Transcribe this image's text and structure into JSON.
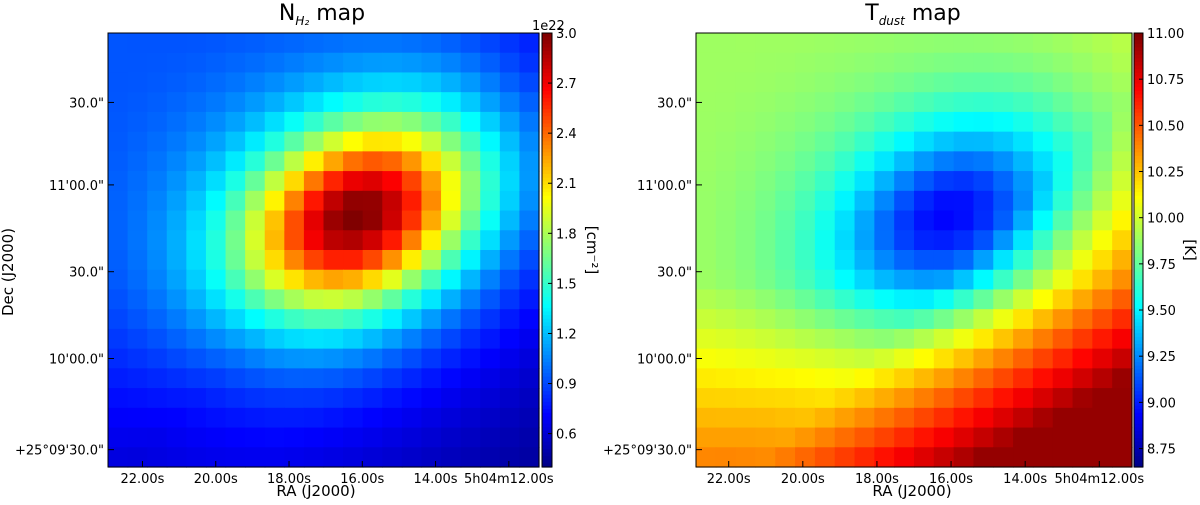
{
  "chart_data": [
    {
      "type": "heatmap",
      "title": "N",
      "title_sub": "H₂",
      "title_suffix": " map",
      "xlabel": "RA (J2000)",
      "ylabel": "Dec (J2000)",
      "x_ticks": [
        "22.00s",
        "20.00s",
        "18.00s",
        "16.00s",
        "14.00s",
        "5h04m12.00s"
      ],
      "y_ticks": [
        "30.0\"",
        "11'00.0\"",
        "30.0\"",
        "10'00.0\"",
        "+25°09'30.0\""
      ],
      "colorbar": {
        "label": "[cm⁻²]",
        "offset_text": "1e22",
        "min": 0.4,
        "max": 3.0,
        "ticks": [
          "3.0",
          "2.7",
          "2.4",
          "2.1",
          "1.8",
          "1.5",
          "1.2",
          "0.9",
          "0.6"
        ],
        "tick_values": [
          3.0,
          2.7,
          2.4,
          2.1,
          1.8,
          1.5,
          1.2,
          0.9,
          0.6
        ],
        "colormap": "jet"
      },
      "grid": {
        "cols": 22,
        "rows": 22
      },
      "model": {
        "description_peak_value": 3.0,
        "peak_col": 12.3,
        "peak_row": 8.8,
        "sigma_major": 4.2,
        "sigma_minor": 2.9,
        "angle_deg": 62,
        "halo_amp": 0.75,
        "halo_sigma_major": 8.5,
        "halo_sigma_minor": 6.0,
        "background": 0.55,
        "gradient_topleft": 0.35
      }
    },
    {
      "type": "heatmap",
      "title": "T",
      "title_sub": "dust",
      "title_suffix": " map",
      "xlabel": "RA (J2000)",
      "ylabel": "",
      "x_ticks": [
        "22.00s",
        "20.00s",
        "18.00s",
        "16.00s",
        "14.00s",
        "5h04m12.00s"
      ],
      "y_ticks": [
        "30.0\"",
        "11'00.0\"",
        "30.0\"",
        "10'00.0\"",
        "+25°09'30.0\""
      ],
      "colorbar": {
        "label": "[K]",
        "offset_text": "",
        "min": 8.65,
        "max": 11.0,
        "ticks": [
          "11.00",
          "10.75",
          "10.50",
          "10.25",
          "10.00",
          "9.75",
          "9.50",
          "9.25",
          "9.00",
          "8.75"
        ],
        "tick_values": [
          11.0,
          10.75,
          10.5,
          10.25,
          10.0,
          9.75,
          9.5,
          9.25,
          9.0,
          8.75
        ],
        "colormap": "jet"
      },
      "grid": {
        "cols": 22,
        "rows": 22
      },
      "model": {
        "min_value": 8.95,
        "edge_value": 9.85,
        "bottom_right_max": 10.95
      }
    }
  ]
}
